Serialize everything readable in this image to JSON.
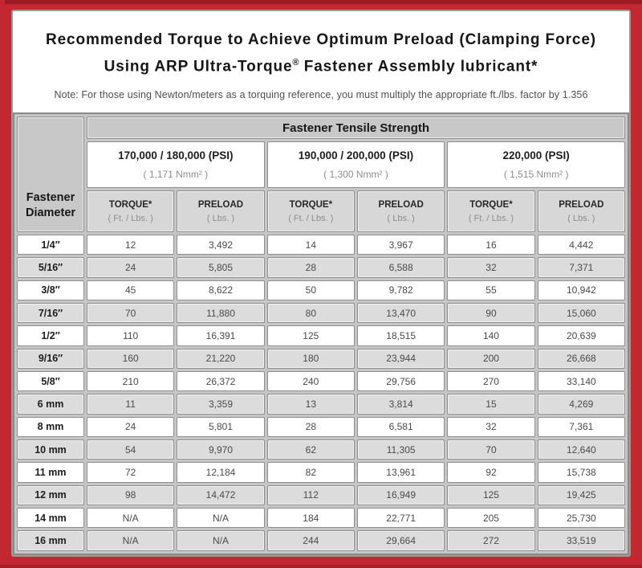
{
  "title": {
    "line1": "Recommended Torque to Achieve Optimum Preload (Clamping Force)",
    "line2_before": "Using ARP Ultra-Torque",
    "line2_symbol": "®",
    "line2_after": " Fastener Assembly lubricant*"
  },
  "note": "Note: For those using Newton/meters as a torquing reference, you must multiply the appropriate ft./lbs. factor by 1.356",
  "colors": {
    "frame_red": "#c32830",
    "frame_top_stripe": "#9a1b21",
    "header_gray": "#c8c8c8",
    "subheader_gray": "#d7d7d7",
    "row_stripe_gray": "#dcdcdc",
    "cell_border_gray": "#8f8f8f"
  },
  "table": {
    "corner": {
      "line1": "Fastener",
      "line2": "Diameter"
    },
    "top_header": "Fastener Tensile Strength",
    "groups": [
      {
        "psi": "170,000 / 180,000 (PSI)",
        "nmm": "( 1,171 Nmm² )"
      },
      {
        "psi": "190,000 / 200,000 (PSI)",
        "nmm": "( 1,300 Nmm² )"
      },
      {
        "psi": "220,000 (PSI)",
        "nmm": "( 1,515 Nmm² )"
      }
    ],
    "torque": {
      "label": "TORQUE*",
      "unit": "( Ft. / Lbs. )"
    },
    "preload": {
      "label": "PRELOAD",
      "unit": "( Lbs. )"
    },
    "rows": [
      {
        "d": "1/4″",
        "v": [
          "12",
          "3,492",
          "14",
          "3,967",
          "16",
          "4,442"
        ]
      },
      {
        "d": "5/16″",
        "v": [
          "24",
          "5,805",
          "28",
          "6,588",
          "32",
          "7,371"
        ]
      },
      {
        "d": "3/8″",
        "v": [
          "45",
          "8,622",
          "50",
          "9,782",
          "55",
          "10,942"
        ]
      },
      {
        "d": "7/16″",
        "v": [
          "70",
          "11,880",
          "80",
          "13,470",
          "90",
          "15,060"
        ]
      },
      {
        "d": "1/2″",
        "v": [
          "110",
          "16,391",
          "125",
          "18,515",
          "140",
          "20,639"
        ]
      },
      {
        "d": "9/16″",
        "v": [
          "160",
          "21,220",
          "180",
          "23,944",
          "200",
          "26,668"
        ]
      },
      {
        "d": "5/8″",
        "v": [
          "210",
          "26,372",
          "240",
          "29,756",
          "270",
          "33,140"
        ]
      },
      {
        "d": "6 mm",
        "v": [
          "11",
          "3,359",
          "13",
          "3,814",
          "15",
          "4,269"
        ]
      },
      {
        "d": "8 mm",
        "v": [
          "24",
          "5,801",
          "28",
          "6,581",
          "32",
          "7,361"
        ]
      },
      {
        "d": "10 mm",
        "v": [
          "54",
          "9,970",
          "62",
          "11,305",
          "70",
          "12,640"
        ]
      },
      {
        "d": "11 mm",
        "v": [
          "72",
          "12,184",
          "82",
          "13,961",
          "92",
          "15,738"
        ]
      },
      {
        "d": "12 mm",
        "v": [
          "98",
          "14,472",
          "112",
          "16,949",
          "125",
          "19,425"
        ]
      },
      {
        "d": "14 mm",
        "v": [
          "N/A",
          "N/A",
          "184",
          "22,771",
          "205",
          "25,730"
        ]
      },
      {
        "d": "16 mm",
        "v": [
          "N/A",
          "N/A",
          "244",
          "29,664",
          "272",
          "33,519"
        ]
      }
    ]
  }
}
